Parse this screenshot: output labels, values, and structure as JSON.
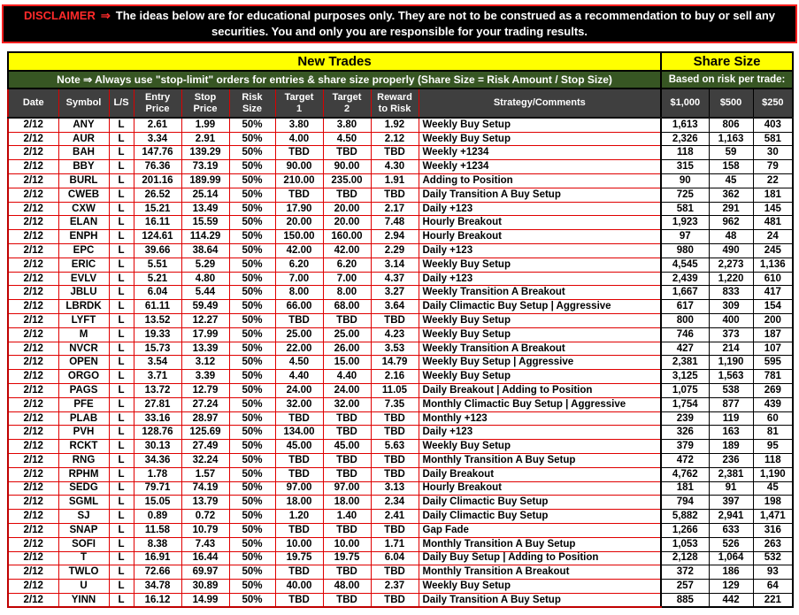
{
  "colors": {
    "banner_yellow": "#ffff00",
    "note_green": "#375623",
    "header_gray": "#3f3f3f",
    "grid_red": "#e00000",
    "grid_black": "#000000",
    "disclaimer_red": "#ff2a2a",
    "disclaimer_bg": "#000000"
  },
  "disclaimer": {
    "label": "DISCLAIMER",
    "arrow": "⇒",
    "text": "The ideas below are for educational purposes only. They are not to be construed as a recommendation to buy or sell any securities. You and only you are responsible for your trading results."
  },
  "banner": {
    "new_trades": "New Trades",
    "share_size": "Share Size",
    "note": "Note ⇒ Always use \"stop-limit\" orders for entries & share size properly (Share Size = Risk Amount / Stop Size)",
    "share_note": "Based on risk per trade:"
  },
  "table": {
    "columns": [
      {
        "name": "date",
        "label": "Date",
        "group": "main"
      },
      {
        "name": "symbol",
        "label": "Symbol",
        "group": "main"
      },
      {
        "name": "long-short",
        "label": "L/S",
        "group": "main"
      },
      {
        "name": "entry-price",
        "label": "Entry\nPrice",
        "group": "main"
      },
      {
        "name": "stop-price",
        "label": "Stop\nPrice",
        "group": "main"
      },
      {
        "name": "risk-size",
        "label": "Risk\nSize",
        "group": "main"
      },
      {
        "name": "target-1",
        "label": "Target\n1",
        "group": "main"
      },
      {
        "name": "target-2",
        "label": "Target\n2",
        "group": "main"
      },
      {
        "name": "reward-to-risk",
        "label": "Reward\nto Risk",
        "group": "main"
      },
      {
        "name": "strategy",
        "label": "Strategy/Comments",
        "group": "main"
      },
      {
        "name": "shares-1000",
        "label": "$1,000",
        "group": "share"
      },
      {
        "name": "shares-500",
        "label": "$500",
        "group": "share"
      },
      {
        "name": "shares-250",
        "label": "$250",
        "group": "share"
      }
    ],
    "rows": [
      [
        "2/12",
        "ANY",
        "L",
        "2.61",
        "1.99",
        "50%",
        "3.80",
        "3.80",
        "1.92",
        "Weekly Buy Setup",
        "1,613",
        "806",
        "403"
      ],
      [
        "2/12",
        "AUR",
        "L",
        "3.34",
        "2.91",
        "50%",
        "4.00",
        "4.50",
        "2.12",
        "Weekly Buy Setup",
        "2,326",
        "1,163",
        "581"
      ],
      [
        "2/12",
        "BAH",
        "L",
        "147.76",
        "139.29",
        "50%",
        "TBD",
        "TBD",
        "TBD",
        "Weekly +1234",
        "118",
        "59",
        "30"
      ],
      [
        "2/12",
        "BBY",
        "L",
        "76.36",
        "73.19",
        "50%",
        "90.00",
        "90.00",
        "4.30",
        "Weekly +1234",
        "315",
        "158",
        "79"
      ],
      [
        "2/12",
        "BURL",
        "L",
        "201.16",
        "189.99",
        "50%",
        "210.00",
        "235.00",
        "1.91",
        "Adding to Position",
        "90",
        "45",
        "22"
      ],
      [
        "2/12",
        "CWEB",
        "L",
        "26.52",
        "25.14",
        "50%",
        "TBD",
        "TBD",
        "TBD",
        "Daily Transition A Buy Setup",
        "725",
        "362",
        "181"
      ],
      [
        "2/12",
        "CXW",
        "L",
        "15.21",
        "13.49",
        "50%",
        "17.90",
        "20.00",
        "2.17",
        "Daily +123",
        "581",
        "291",
        "145"
      ],
      [
        "2/12",
        "ELAN",
        "L",
        "16.11",
        "15.59",
        "50%",
        "20.00",
        "20.00",
        "7.48",
        "Hourly Breakout",
        "1,923",
        "962",
        "481"
      ],
      [
        "2/12",
        "ENPH",
        "L",
        "124.61",
        "114.29",
        "50%",
        "150.00",
        "160.00",
        "2.94",
        "Hourly Breakout",
        "97",
        "48",
        "24"
      ],
      [
        "2/12",
        "EPC",
        "L",
        "39.66",
        "38.64",
        "50%",
        "42.00",
        "42.00",
        "2.29",
        "Daily +123",
        "980",
        "490",
        "245"
      ],
      [
        "2/12",
        "ERIC",
        "L",
        "5.51",
        "5.29",
        "50%",
        "6.20",
        "6.20",
        "3.14",
        "Weekly Buy Setup",
        "4,545",
        "2,273",
        "1,136"
      ],
      [
        "2/12",
        "EVLV",
        "L",
        "5.21",
        "4.80",
        "50%",
        "7.00",
        "7.00",
        "4.37",
        "Daily +123",
        "2,439",
        "1,220",
        "610"
      ],
      [
        "2/12",
        "JBLU",
        "L",
        "6.04",
        "5.44",
        "50%",
        "8.00",
        "8.00",
        "3.27",
        "Weekly Transition A Breakout",
        "1,667",
        "833",
        "417"
      ],
      [
        "2/12",
        "LBRDK",
        "L",
        "61.11",
        "59.49",
        "50%",
        "66.00",
        "68.00",
        "3.64",
        "Daily Climactic Buy Setup | Aggressive",
        "617",
        "309",
        "154"
      ],
      [
        "2/12",
        "LYFT",
        "L",
        "13.52",
        "12.27",
        "50%",
        "TBD",
        "TBD",
        "TBD",
        "Weekly Buy Setup",
        "800",
        "400",
        "200"
      ],
      [
        "2/12",
        "M",
        "L",
        "19.33",
        "17.99",
        "50%",
        "25.00",
        "25.00",
        "4.23",
        "Weekly Buy Setup",
        "746",
        "373",
        "187"
      ],
      [
        "2/12",
        "NVCR",
        "L",
        "15.73",
        "13.39",
        "50%",
        "22.00",
        "26.00",
        "3.53",
        "Weekly Transition A Breakout",
        "427",
        "214",
        "107"
      ],
      [
        "2/12",
        "OPEN",
        "L",
        "3.54",
        "3.12",
        "50%",
        "4.50",
        "15.00",
        "14.79",
        "Weekly Buy Setup | Aggressive",
        "2,381",
        "1,190",
        "595"
      ],
      [
        "2/12",
        "ORGO",
        "L",
        "3.71",
        "3.39",
        "50%",
        "4.40",
        "4.40",
        "2.16",
        "Weekly Buy Setup",
        "3,125",
        "1,563",
        "781"
      ],
      [
        "2/12",
        "PAGS",
        "L",
        "13.72",
        "12.79",
        "50%",
        "24.00",
        "24.00",
        "11.05",
        "Daily Breakout | Adding to Position",
        "1,075",
        "538",
        "269"
      ],
      [
        "2/12",
        "PFE",
        "L",
        "27.81",
        "27.24",
        "50%",
        "32.00",
        "32.00",
        "7.35",
        "Monthly Climactic Buy Setup | Aggressive",
        "1,754",
        "877",
        "439"
      ],
      [
        "2/12",
        "PLAB",
        "L",
        "33.16",
        "28.97",
        "50%",
        "TBD",
        "TBD",
        "TBD",
        "Monthly +123",
        "239",
        "119",
        "60"
      ],
      [
        "2/12",
        "PVH",
        "L",
        "128.76",
        "125.69",
        "50%",
        "134.00",
        "TBD",
        "TBD",
        "Daily +123",
        "326",
        "163",
        "81"
      ],
      [
        "2/12",
        "RCKT",
        "L",
        "30.13",
        "27.49",
        "50%",
        "45.00",
        "45.00",
        "5.63",
        "Weekly Buy Setup",
        "379",
        "189",
        "95"
      ],
      [
        "2/12",
        "RNG",
        "L",
        "34.36",
        "32.24",
        "50%",
        "TBD",
        "TBD",
        "TBD",
        "Monthly Transition A Buy Setup",
        "472",
        "236",
        "118"
      ],
      [
        "2/12",
        "RPHM",
        "L",
        "1.78",
        "1.57",
        "50%",
        "TBD",
        "TBD",
        "TBD",
        "Daily Breakout",
        "4,762",
        "2,381",
        "1,190"
      ],
      [
        "2/12",
        "SEDG",
        "L",
        "79.71",
        "74.19",
        "50%",
        "97.00",
        "97.00",
        "3.13",
        "Hourly Breakout",
        "181",
        "91",
        "45"
      ],
      [
        "2/12",
        "SGML",
        "L",
        "15.05",
        "13.79",
        "50%",
        "18.00",
        "18.00",
        "2.34",
        "Daily Climactic Buy Setup",
        "794",
        "397",
        "198"
      ],
      [
        "2/12",
        "SJ",
        "L",
        "0.89",
        "0.72",
        "50%",
        "1.20",
        "1.40",
        "2.41",
        "Daily Climactic Buy Setup",
        "5,882",
        "2,941",
        "1,471"
      ],
      [
        "2/12",
        "SNAP",
        "L",
        "11.58",
        "10.79",
        "50%",
        "TBD",
        "TBD",
        "TBD",
        "Gap Fade",
        "1,266",
        "633",
        "316"
      ],
      [
        "2/12",
        "SOFI",
        "L",
        "8.38",
        "7.43",
        "50%",
        "10.00",
        "10.00",
        "1.71",
        "Monthly Transition A Buy Setup",
        "1,053",
        "526",
        "263"
      ],
      [
        "2/12",
        "T",
        "L",
        "16.91",
        "16.44",
        "50%",
        "19.75",
        "19.75",
        "6.04",
        "Daily Buy Setup | Adding to Position",
        "2,128",
        "1,064",
        "532"
      ],
      [
        "2/12",
        "TWLO",
        "L",
        "72.66",
        "69.97",
        "50%",
        "TBD",
        "TBD",
        "TBD",
        "Monthly Transition A Breakout",
        "372",
        "186",
        "93"
      ],
      [
        "2/12",
        "U",
        "L",
        "34.78",
        "30.89",
        "50%",
        "40.00",
        "48.00",
        "2.37",
        "Weekly Buy Setup",
        "257",
        "129",
        "64"
      ],
      [
        "2/12",
        "YINN",
        "L",
        "16.12",
        "14.99",
        "50%",
        "TBD",
        "TBD",
        "TBD",
        "Daily Transition A Buy Setup",
        "885",
        "442",
        "221"
      ]
    ]
  }
}
